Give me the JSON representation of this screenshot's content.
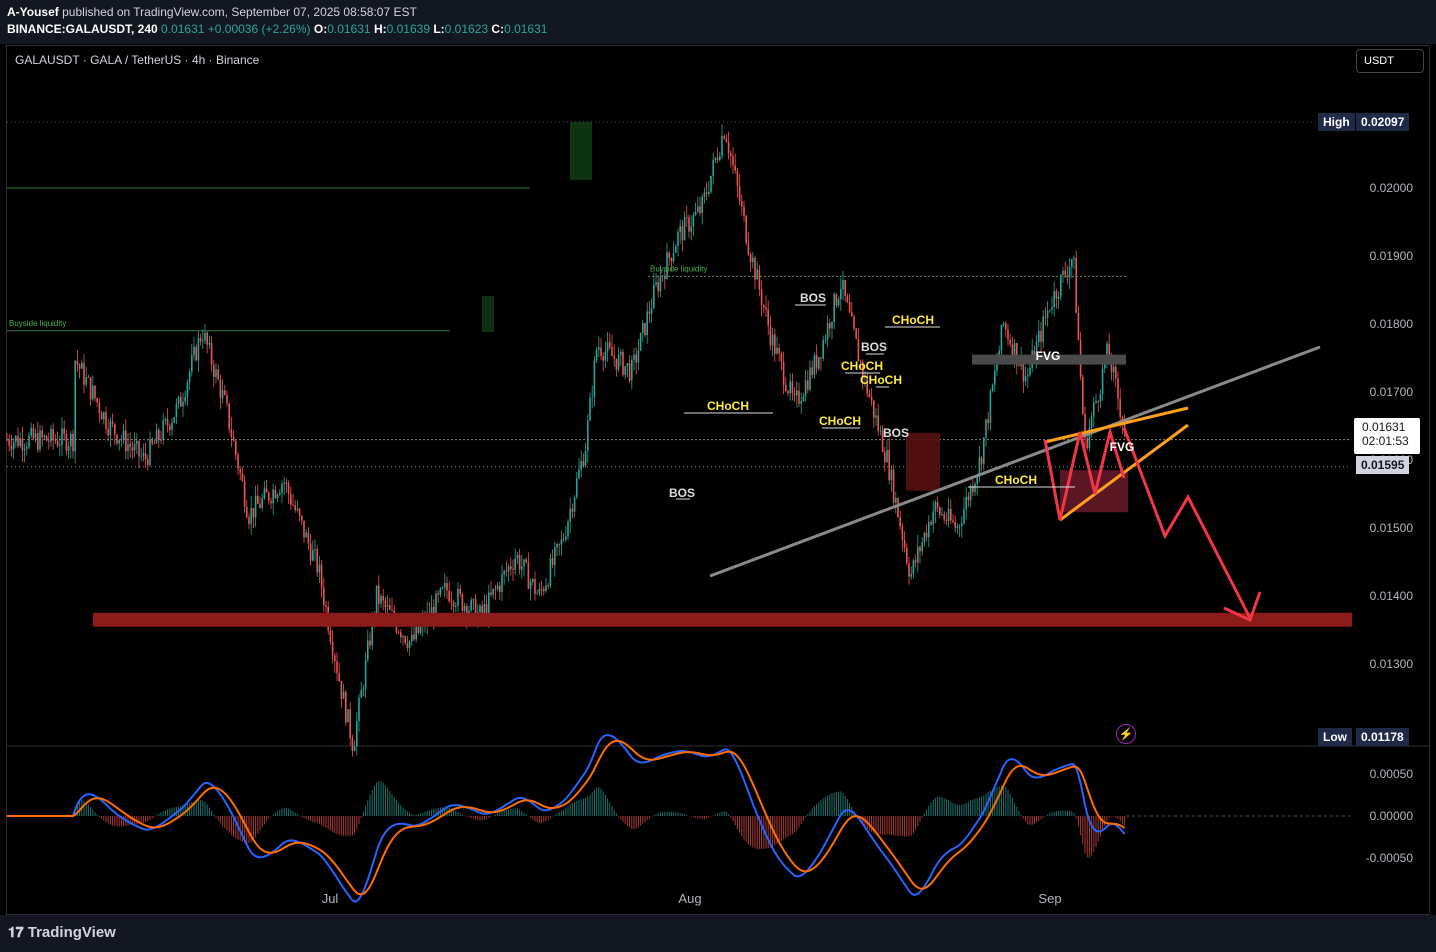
{
  "header": {
    "author": "A-Yousef",
    "published_text": "published on TradingView.com, September 07, 2025 08:58:07 EST",
    "symbol_line": "BINANCE:GALAUSDT, 240",
    "last": "0.01631",
    "change": "+0.00036 (+2.26%)",
    "o_label": "O:",
    "o": "0.01631",
    "h_label": "H:",
    "h": "0.01639",
    "l_label": "L:",
    "l": "0.01623",
    "c_label": "C:",
    "c": "0.01631"
  },
  "chart_title": "GALAUSDT · GALA / TetherUS · 4h · Binance",
  "currency_button": "USDT",
  "brand": "TradingView",
  "labels": {
    "high_tag": "High",
    "high_value": "0.02097",
    "low_tag": "Low",
    "low_value": "0.01178",
    "current_price": "0.01631",
    "countdown": "02:01:53",
    "level_price": "0.01595"
  },
  "colors": {
    "up": "#26a69a",
    "down": "#ef5350",
    "bg": "#000000",
    "trendline": "#8a8a8a",
    "wedge": "#ff9f1c",
    "projection": "#f23645",
    "zone": "#8b1a1a",
    "annotation": "#ffeb3b",
    "macd": "#2962ff",
    "signal": "#ff6d00"
  },
  "chart_data": {
    "type": "candlestick",
    "xlabel": "",
    "ylabel": "",
    "ylim": [
      0.0117,
      0.021
    ],
    "x_ticks": [
      "Jul",
      "Aug",
      "Sep"
    ],
    "y_ticks": [
      "0.02000",
      "0.01900",
      "0.01800",
      "0.01700",
      "0.01600",
      "0.01500",
      "0.01400",
      "0.01300"
    ],
    "close_path": [
      [
        "Jun 09",
        0.0175
      ],
      [
        "Jun 12",
        0.0165
      ],
      [
        "Jun 15",
        0.016
      ],
      [
        "Jun 18",
        0.0168
      ],
      [
        "Jun 20",
        0.0179
      ],
      [
        "Jun 22",
        0.0168
      ],
      [
        "Jun 24",
        0.0152
      ],
      [
        "Jun 27",
        0.0157
      ],
      [
        "Jun 30",
        0.0144
      ],
      [
        "Jul 02",
        0.0126
      ],
      [
        "Jul 03",
        0.0118
      ],
      [
        "Jul 05",
        0.014
      ],
      [
        "Jul 08",
        0.0133
      ],
      [
        "Jul 11",
        0.0141
      ],
      [
        "Jul 14",
        0.0137
      ],
      [
        "Jul 17",
        0.0146
      ],
      [
        "Jul 19",
        0.014
      ],
      [
        "Jul 21",
        0.0148
      ],
      [
        "Jul 23",
        0.0162
      ],
      [
        "Jul 24",
        0.0177
      ],
      [
        "Jul 27",
        0.0173
      ],
      [
        "Jul 29",
        0.0185
      ],
      [
        "Jul 31",
        0.0193
      ],
      [
        "Aug 02",
        0.0197
      ],
      [
        "Aug 04",
        0.0209
      ],
      [
        "Aug 06",
        0.0192
      ],
      [
        "Aug 08",
        0.0178
      ],
      [
        "Aug 10",
        0.0168
      ],
      [
        "Aug 12",
        0.0175
      ],
      [
        "Aug 14",
        0.0186
      ],
      [
        "Aug 16",
        0.0172
      ],
      [
        "Aug 18",
        0.016
      ],
      [
        "Aug 20",
        0.0143
      ],
      [
        "Aug 22",
        0.0153
      ],
      [
        "Aug 24",
        0.015
      ],
      [
        "Aug 26",
        0.016
      ],
      [
        "Aug 28",
        0.018
      ],
      [
        "Aug 30",
        0.0172
      ],
      [
        "Sep 01",
        0.0183
      ],
      [
        "Sep 03",
        0.019
      ],
      [
        "Sep 04",
        0.0162
      ],
      [
        "Sep 06",
        0.0176
      ],
      [
        "Sep 08",
        0.016
      ],
      [
        "Sep 11",
        0.0185
      ],
      [
        "Sep 13",
        0.019
      ],
      [
        "Sep 15",
        0.0175
      ],
      [
        "Sep 17",
        0.0162
      ],
      [
        "Sep 18",
        0.017
      ],
      [
        "Sep 20",
        0.016
      ],
      [
        "Sep 23",
        0.0166
      ],
      [
        "Sep 25",
        0.0155
      ],
      [
        "Sep 27",
        0.0152
      ],
      [
        "Sep 29",
        0.0161
      ],
      [
        "Sep 30",
        0.0158
      ],
      [
        "Oct 01",
        0.0163
      ]
    ],
    "liquidity_lines": [
      {
        "label": "Buyside liquidity",
        "price": 0.0179
      },
      {
        "label": "Buyside liquidity",
        "price": 0.0187
      }
    ],
    "level_lines": [
      0.02,
      0.0163,
      0.0159
    ],
    "annotations": [
      {
        "text": "BOS",
        "price": 0.0183
      },
      {
        "text": "BOS",
        "price": 0.0177
      },
      {
        "text": "BOS",
        "price": 0.0164
      },
      {
        "text": "BOS",
        "price": 0.0153
      },
      {
        "text": "CHoCH",
        "price": 0.0173
      },
      {
        "text": "CHoCH",
        "price": 0.0176
      },
      {
        "text": "CHoCH",
        "price": 0.0174
      },
      {
        "text": "CHoCH",
        "price": 0.018
      },
      {
        "text": "CHoCH",
        "price": 0.0166
      },
      {
        "text": "CHoCH",
        "price": 0.0157
      },
      {
        "text": "FVG",
        "price": 0.0175
      },
      {
        "text": "FVG",
        "price": 0.0162
      }
    ],
    "support_zone": [
      0.0137,
      0.0139
    ],
    "macd": {
      "y_ticks": [
        "0.00050",
        "0.00000",
        "-0.00050"
      ],
      "ylim": [
        -0.0008,
        0.0009
      ]
    }
  }
}
